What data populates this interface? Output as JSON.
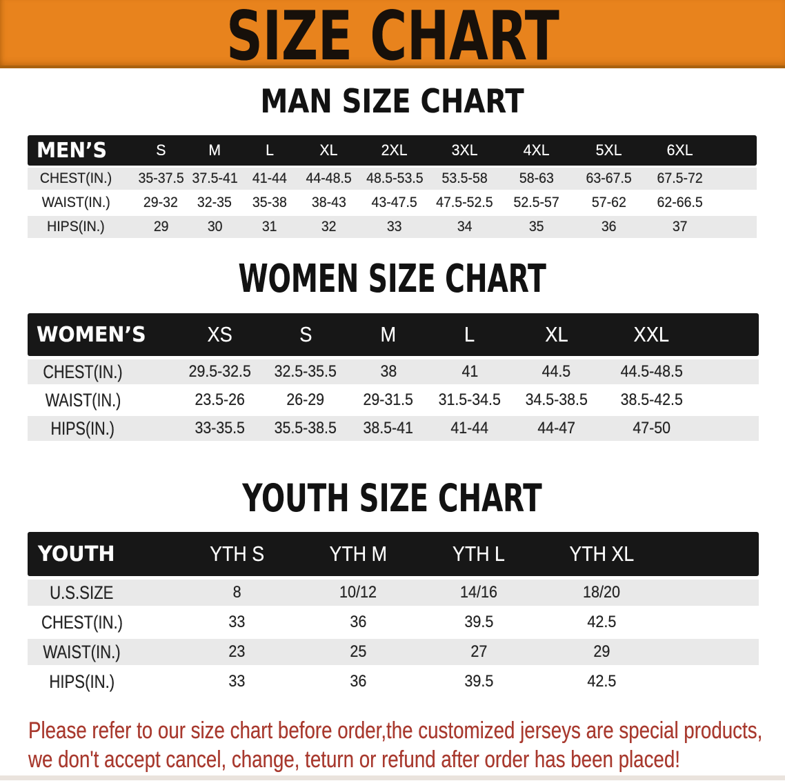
{
  "banner": {
    "title": "SIZE CHART"
  },
  "colors": {
    "banner_orange": "#e8831d",
    "banner_border": "#aa620f",
    "table_header_black": "#171717",
    "row_gray": "#e9e9e9",
    "row_white": "#ffffff",
    "note_red": "#a8392e"
  },
  "chart_data": [
    {
      "type": "table",
      "title": "MAN SIZE CHART",
      "header": [
        "MEN’S",
        "S",
        "M",
        "L",
        "XL",
        "2XL",
        "3XL",
        "4XL",
        "5XL",
        "6XL"
      ],
      "rows": [
        [
          "CHEST(IN.)",
          "35-37.5",
          "37.5-41",
          "41-44",
          "44-48.5",
          "48.5-53.5",
          "53.5-58",
          "58-63",
          "63-67.5",
          "67.5-72"
        ],
        [
          "WAIST(IN.)",
          "29-32",
          "32-35",
          "35-38",
          "38-43",
          "43-47.5",
          "47.5-52.5",
          "52.5-57",
          "57-62",
          "62-66.5"
        ],
        [
          "HIPS(IN.)",
          "29",
          "30",
          "31",
          "32",
          "33",
          "34",
          "35",
          "36",
          "37"
        ]
      ]
    },
    {
      "type": "table",
      "title": "WOMEN SIZE CHART",
      "header": [
        "WOMEN’S",
        "XS",
        "S",
        "M",
        "L",
        "XL",
        "XXL"
      ],
      "rows": [
        [
          "CHEST(IN.)",
          "29.5-32.5",
          "32.5-35.5",
          "38",
          "41",
          "44.5",
          "44.5-48.5"
        ],
        [
          "WAIST(IN.)",
          "23.5-26",
          "26-29",
          "29-31.5",
          "31.5-34.5",
          "34.5-38.5",
          "38.5-42.5"
        ],
        [
          "HIPS(IN.)",
          "33-35.5",
          "35.5-38.5",
          "38.5-41",
          "41-44",
          "44-47",
          "47-50"
        ]
      ]
    },
    {
      "type": "table",
      "title": "YOUTH SIZE CHART",
      "header": [
        "YOUTH",
        "YTH S",
        "YTH M",
        "YTH L",
        "YTH XL"
      ],
      "rows": [
        [
          "U.S.SIZE",
          "8",
          "10/12",
          "14/16",
          "18/20"
        ],
        [
          "CHEST(IN.)",
          "33",
          "36",
          "39.5",
          "42.5"
        ],
        [
          "WAIST(IN.)",
          "23",
          "25",
          "27",
          "29"
        ],
        [
          "HIPS(IN.)",
          "33",
          "36",
          "39.5",
          "42.5"
        ]
      ]
    }
  ],
  "footer_note": {
    "line1": "Please refer to our size chart before order,the customized jerseys are special products,",
    "line2": "we don't accept cancel, change, teturn or refund after order has been placed!"
  }
}
